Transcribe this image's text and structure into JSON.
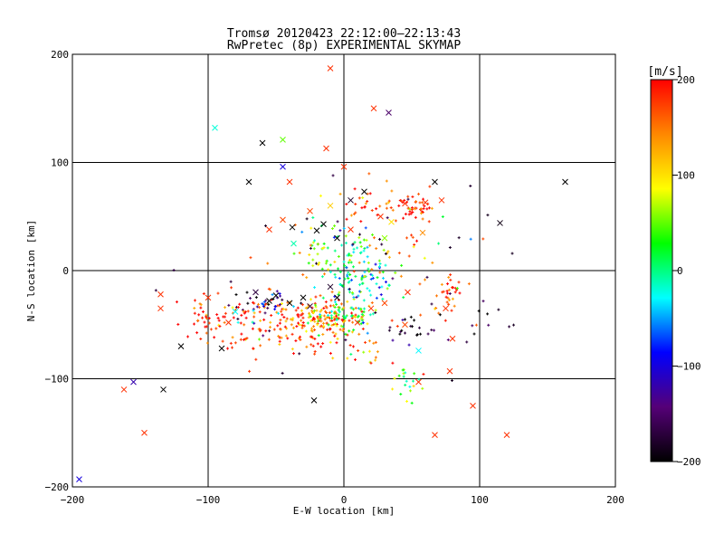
{
  "chart_data": {
    "type": "scatter",
    "title": "Tromsø 20120423 22:12:00–22:13:43",
    "subtitle": "RwPretec (8p) EXPERIMENTAL SKYMAP",
    "xlabel": "E-W location [km]",
    "ylabel": "N-S location [km]",
    "xlim": [
      -200,
      200
    ],
    "ylim": [
      -200,
      200
    ],
    "xticks": [
      -200,
      -100,
      0,
      100,
      200
    ],
    "yticks": [
      -200,
      -100,
      0,
      100,
      200
    ],
    "xtick_labels": [
      "−200",
      "−100",
      "0",
      "100",
      "200"
    ],
    "ytick_labels": [
      "−200",
      "−100",
      "0",
      "100",
      "200"
    ],
    "grid": true,
    "colorbar": {
      "label": "[m/s]",
      "range": [
        -200,
        200
      ],
      "ticks": [
        200,
        100,
        0,
        -100,
        -200
      ],
      "tick_labels": [
        "200",
        "100",
        "0",
        "−100",
        "−200"
      ],
      "colormap": [
        "#000000",
        "#550077",
        "#0000ff",
        "#00ffff",
        "#00ff00",
        "#ffff00",
        "#ff8800",
        "#ff0000"
      ]
    },
    "markers": {
      "dot": "+ (small)",
      "cross": "x (large)"
    },
    "clusters": [
      {
        "x": -40,
        "y": -42,
        "sx": 24,
        "sy": 10,
        "v": 170,
        "n": 110
      },
      {
        "x": -10,
        "y": -45,
        "sx": 14,
        "sy": 7,
        "v": 150,
        "n": 70
      },
      {
        "x": 0,
        "y": -42,
        "sx": 12,
        "sy": 8,
        "v": 30,
        "n": 65
      },
      {
        "x": 5,
        "y": 5,
        "sx": 10,
        "sy": 18,
        "v": 0,
        "n": 85
      },
      {
        "x": 20,
        "y": -8,
        "sx": 10,
        "sy": 10,
        "v": -40,
        "n": 35
      },
      {
        "x": -20,
        "y": 15,
        "sx": 8,
        "sy": 18,
        "v": 40,
        "n": 35
      },
      {
        "x": 55,
        "y": 58,
        "sx": 8,
        "sy": 6,
        "v": 190,
        "n": 40
      },
      {
        "x": 75,
        "y": -20,
        "sx": 6,
        "sy": 9,
        "v": 180,
        "n": 30
      },
      {
        "x": -60,
        "y": -25,
        "sx": 10,
        "sy": 6,
        "v": -170,
        "n": 20
      },
      {
        "x": -100,
        "y": -45,
        "sx": 12,
        "sy": 10,
        "v": 170,
        "n": 40
      },
      {
        "x": -20,
        "y": -65,
        "sx": 14,
        "sy": 8,
        "v": 180,
        "n": 35
      },
      {
        "x": 45,
        "y": -100,
        "sx": 6,
        "sy": 10,
        "v": 20,
        "n": 20
      },
      {
        "x": 20,
        "y": 60,
        "sx": 14,
        "sy": 10,
        "v": 180,
        "n": 30
      },
      {
        "x": 45,
        "y": 20,
        "sx": 12,
        "sy": 10,
        "v": 120,
        "n": 15
      },
      {
        "x": 100,
        "y": -45,
        "sx": 15,
        "sy": 10,
        "v": -190,
        "n": 12
      },
      {
        "x": -70,
        "y": -65,
        "sx": 15,
        "sy": 10,
        "v": 160,
        "n": 25
      },
      {
        "x": -55,
        "y": -35,
        "sx": 10,
        "sy": 8,
        "v": -110,
        "n": 15
      },
      {
        "x": 50,
        "y": -55,
        "sx": 10,
        "sy": 8,
        "v": -190,
        "n": 20
      },
      {
        "x": 20,
        "y": -80,
        "sx": 10,
        "sy": 4,
        "v": 130,
        "n": 12
      }
    ],
    "crosses": [
      {
        "x": -10,
        "y": 187,
        "v": 180
      },
      {
        "x": 22,
        "y": 150,
        "v": 180
      },
      {
        "x": 33,
        "y": 146,
        "v": -150
      },
      {
        "x": -45,
        "y": 121,
        "v": 50
      },
      {
        "x": -60,
        "y": 118,
        "v": -200
      },
      {
        "x": -13,
        "y": 113,
        "v": 180
      },
      {
        "x": -45,
        "y": 96,
        "v": -100
      },
      {
        "x": 0,
        "y": 96,
        "v": 180
      },
      {
        "x": -95,
        "y": 132,
        "v": -20
      },
      {
        "x": -70,
        "y": 82,
        "v": -200
      },
      {
        "x": -40,
        "y": 82,
        "v": 180
      },
      {
        "x": 67,
        "y": 82,
        "v": -200
      },
      {
        "x": 163,
        "y": 82,
        "v": -200
      },
      {
        "x": 115,
        "y": 44,
        "v": -190
      },
      {
        "x": 15,
        "y": 73,
        "v": -200
      },
      {
        "x": 5,
        "y": 65,
        "v": -180
      },
      {
        "x": -25,
        "y": 55,
        "v": 170
      },
      {
        "x": -45,
        "y": 47,
        "v": 170
      },
      {
        "x": -10,
        "y": 60,
        "v": 110
      },
      {
        "x": -37,
        "y": 25,
        "v": -10
      },
      {
        "x": -38,
        "y": 40,
        "v": -200
      },
      {
        "x": -55,
        "y": 38,
        "v": 180
      },
      {
        "x": -135,
        "y": -22,
        "v": 180
      },
      {
        "x": -135,
        "y": -35,
        "v": 180
      },
      {
        "x": -100,
        "y": -25,
        "v": 180
      },
      {
        "x": -120,
        "y": -70,
        "v": -200
      },
      {
        "x": -90,
        "y": -72,
        "v": -200
      },
      {
        "x": -155,
        "y": -103,
        "v": -120
      },
      {
        "x": -162,
        "y": -110,
        "v": 180
      },
      {
        "x": -133,
        "y": -110,
        "v": -200
      },
      {
        "x": -147,
        "y": -150,
        "v": 180
      },
      {
        "x": -195,
        "y": -193,
        "v": -100
      },
      {
        "x": -22,
        "y": -120,
        "v": -200
      },
      {
        "x": 67,
        "y": -152,
        "v": 180
      },
      {
        "x": 120,
        "y": -152,
        "v": 180
      },
      {
        "x": 95,
        "y": -125,
        "v": 180
      },
      {
        "x": 78,
        "y": -93,
        "v": 180
      },
      {
        "x": 55,
        "y": -103,
        "v": 180
      },
      {
        "x": 55,
        "y": -74,
        "v": -30
      },
      {
        "x": 47,
        "y": -20,
        "v": 180
      },
      {
        "x": 75,
        "y": -35,
        "v": 180
      },
      {
        "x": 80,
        "y": -63,
        "v": 180
      },
      {
        "x": -55,
        "y": -28,
        "v": -200
      },
      {
        "x": -50,
        "y": -23,
        "v": -200
      },
      {
        "x": -40,
        "y": -30,
        "v": -200
      },
      {
        "x": -30,
        "y": -25,
        "v": -200
      },
      {
        "x": -25,
        "y": -33,
        "v": -170
      },
      {
        "x": -65,
        "y": -20,
        "v": -170
      },
      {
        "x": -10,
        "y": -15,
        "v": -180
      },
      {
        "x": -5,
        "y": -25,
        "v": -200
      },
      {
        "x": 30,
        "y": -30,
        "v": 170
      },
      {
        "x": 45,
        "y": -50,
        "v": 170
      },
      {
        "x": -80,
        "y": -38,
        "v": -30
      },
      {
        "x": -85,
        "y": -48,
        "v": 180
      },
      {
        "x": 10,
        "y": -48,
        "v": 180
      },
      {
        "x": 20,
        "y": -35,
        "v": 180
      },
      {
        "x": 60,
        "y": 63,
        "v": 180
      },
      {
        "x": 72,
        "y": 65,
        "v": 180
      },
      {
        "x": 45,
        "y": 62,
        "v": 180
      },
      {
        "x": 35,
        "y": 45,
        "v": 100
      },
      {
        "x": 27,
        "y": 50,
        "v": 180
      },
      {
        "x": 30,
        "y": 30,
        "v": 60
      },
      {
        "x": -15,
        "y": 43,
        "v": -200
      },
      {
        "x": -20,
        "y": 37,
        "v": -200
      },
      {
        "x": -5,
        "y": 30,
        "v": -200
      },
      {
        "x": 5,
        "y": 38,
        "v": 180
      },
      {
        "x": 58,
        "y": 35,
        "v": 140
      }
    ]
  }
}
